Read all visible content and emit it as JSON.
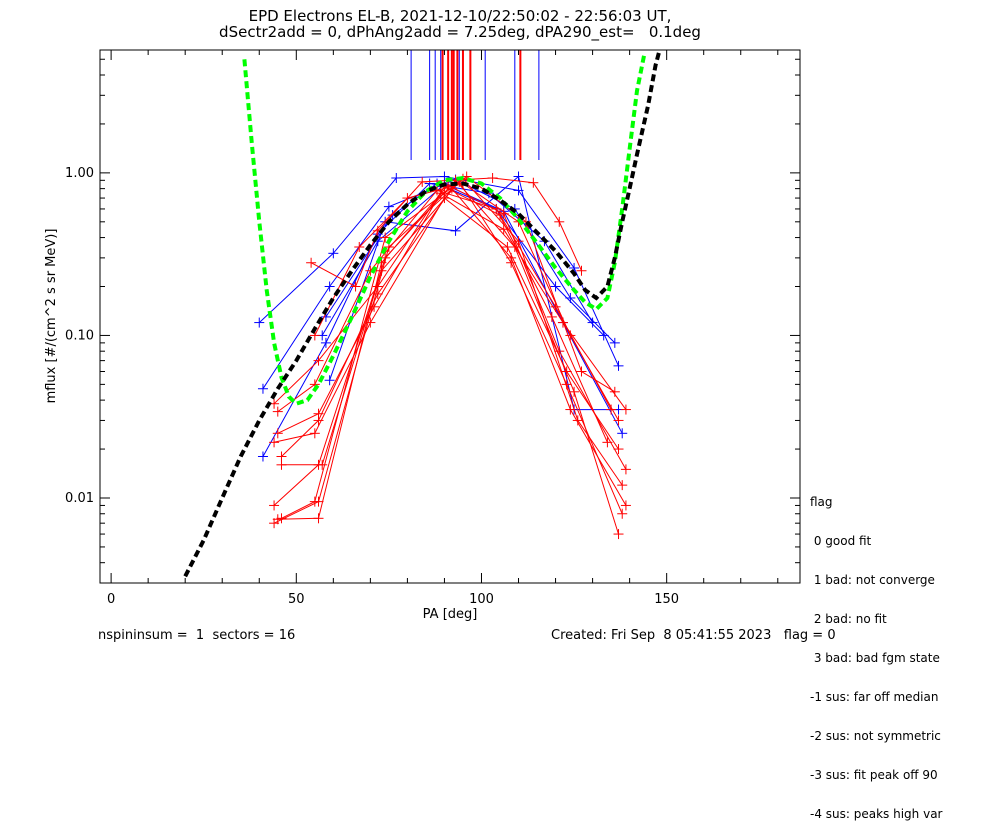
{
  "title": {
    "line1": "EPD Electrons EL-B, 2021-12-10/22:50:02 - 22:56:03 UT,",
    "line2": "dSectr2add = 0, dPhAng2add = 7.25deg, dPA290_est=   0.1deg"
  },
  "footer": {
    "left": "nspininsum =  1  sectors = 16",
    "right": "Created: Fri Sep  8 05:41:55 2023   flag = 0"
  },
  "legend": {
    "title": "flag",
    "items": [
      " 0 good fit",
      " 1 bad: not converge",
      " 2 bad: no fit",
      " 3 bad: bad fgm state",
      "-1 sus: far off median",
      "-2 sus: not symmetric",
      "-3 sus: fit peak off 90",
      "-4 sus: peaks high var"
    ]
  },
  "chart_data": {
    "type": "line",
    "xlabel": "PA [deg]",
    "ylabel": "mflux [#/(cm^2 s sr MeV)]",
    "xlim": [
      -3,
      186
    ],
    "ylim": [
      0.003,
      5.7
    ],
    "y_scale": "log",
    "x_ticks": [
      0,
      50,
      100,
      150
    ],
    "y_ticks": [
      {
        "value": 0.01,
        "label": "0.01"
      },
      {
        "value": 0.1,
        "label": "0.10"
      },
      {
        "value": 1.0,
        "label": "1.00"
      }
    ],
    "colors": {
      "blue": "#0000ff",
      "red": "#ff0000",
      "green": "#00ff00",
      "black": "#000000"
    },
    "peak_markers": {
      "blue_pa": [
        81,
        86,
        87.5,
        89,
        91,
        94,
        101,
        109,
        115.5
      ],
      "red_pa": [
        89.5,
        91,
        92,
        92.5,
        93.5,
        95,
        97,
        110.5
      ]
    },
    "fit_curves": [
      {
        "color": "green",
        "points": [
          [
            36,
            5.0
          ],
          [
            38,
            1.5
          ],
          [
            40,
            0.5
          ],
          [
            42,
            0.19
          ],
          [
            44,
            0.09
          ],
          [
            46,
            0.055
          ],
          [
            48,
            0.042
          ],
          [
            50,
            0.038
          ],
          [
            53,
            0.04
          ],
          [
            56,
            0.05
          ],
          [
            60,
            0.075
          ],
          [
            65,
            0.13
          ],
          [
            70,
            0.23
          ],
          [
            75,
            0.38
          ],
          [
            80,
            0.58
          ],
          [
            85,
            0.77
          ],
          [
            90,
            0.9
          ],
          [
            95,
            0.93
          ],
          [
            100,
            0.86
          ],
          [
            105,
            0.7
          ],
          [
            110,
            0.52
          ],
          [
            115,
            0.37
          ],
          [
            120,
            0.26
          ],
          [
            125,
            0.19
          ],
          [
            128,
            0.16
          ],
          [
            131,
            0.145
          ],
          [
            134,
            0.17
          ],
          [
            136,
            0.28
          ],
          [
            138,
            0.6
          ],
          [
            140,
            1.4
          ],
          [
            142,
            3.2
          ],
          [
            144,
            5.4
          ]
        ]
      },
      {
        "color": "black",
        "points": [
          [
            20,
            0.0033
          ],
          [
            25,
            0.0055
          ],
          [
            30,
            0.01
          ],
          [
            35,
            0.018
          ],
          [
            40,
            0.03
          ],
          [
            45,
            0.047
          ],
          [
            50,
            0.07
          ],
          [
            55,
            0.11
          ],
          [
            60,
            0.17
          ],
          [
            65,
            0.25
          ],
          [
            70,
            0.36
          ],
          [
            75,
            0.5
          ],
          [
            80,
            0.64
          ],
          [
            85,
            0.77
          ],
          [
            90,
            0.85
          ],
          [
            95,
            0.86
          ],
          [
            100,
            0.8
          ],
          [
            105,
            0.68
          ],
          [
            110,
            0.56
          ],
          [
            115,
            0.43
          ],
          [
            120,
            0.33
          ],
          [
            125,
            0.24
          ],
          [
            128,
            0.19
          ],
          [
            131,
            0.17
          ],
          [
            134,
            0.2
          ],
          [
            136,
            0.3
          ],
          [
            138,
            0.5
          ],
          [
            140,
            0.8
          ],
          [
            142,
            1.3
          ],
          [
            145,
            2.6
          ],
          [
            147,
            4.6
          ],
          [
            148,
            5.6
          ]
        ]
      }
    ],
    "series": [
      {
        "color": "blue",
        "points": [
          [
            40,
            0.12
          ],
          [
            60,
            0.32
          ],
          [
            77,
            0.93
          ],
          [
            90,
            0.95
          ],
          [
            110,
            0.78
          ],
          [
            125,
            0.26
          ],
          [
            137,
            0.065
          ]
        ]
      },
      {
        "color": "blue",
        "points": [
          [
            41,
            0.047
          ],
          [
            59,
            0.2
          ],
          [
            75,
            0.62
          ],
          [
            93,
            0.91
          ],
          [
            109,
            0.6
          ],
          [
            124,
            0.17
          ],
          [
            136,
            0.09
          ]
        ]
      },
      {
        "color": "blue",
        "points": [
          [
            41,
            0.018
          ],
          [
            58,
            0.09
          ],
          [
            72,
            0.42
          ],
          [
            86,
            0.86
          ],
          [
            102,
            0.75
          ],
          [
            117,
            0.38
          ],
          [
            130,
            0.12
          ]
        ]
      },
      {
        "color": "blue",
        "points": [
          [
            59,
            0.053
          ],
          [
            74,
            0.5
          ],
          [
            93,
            0.44
          ],
          [
            110,
            0.95
          ],
          [
            125,
            0.035
          ],
          [
            137,
            0.035
          ]
        ]
      },
      {
        "color": "blue",
        "points": [
          [
            58,
            0.13
          ],
          [
            76,
            0.55
          ],
          [
            88,
            0.86
          ],
          [
            104,
            0.6
          ],
          [
            120,
            0.2
          ],
          [
            133,
            0.1
          ]
        ]
      },
      {
        "color": "blue",
        "points": [
          [
            57,
            0.1
          ],
          [
            72,
            0.38
          ],
          [
            90,
            0.85
          ],
          [
            106,
            0.58
          ],
          [
            122,
            0.12
          ],
          [
            138,
            0.025
          ]
        ]
      },
      {
        "color": "red",
        "points": [
          [
            54,
            0.28
          ],
          [
            66,
            0.2
          ],
          [
            72,
            0.44
          ],
          [
            84,
            0.88
          ],
          [
            103,
            0.93
          ],
          [
            114,
            0.87
          ],
          [
            121,
            0.5
          ],
          [
            127,
            0.25
          ]
        ]
      },
      {
        "color": "red",
        "points": [
          [
            55,
            0.1
          ],
          [
            67,
            0.35
          ],
          [
            80,
            0.7
          ],
          [
            95,
            0.86
          ],
          [
            110,
            0.5
          ],
          [
            124,
            0.1
          ],
          [
            137,
            0.03
          ]
        ]
      },
      {
        "color": "red",
        "points": [
          [
            44,
            0.038
          ],
          [
            56,
            0.07
          ],
          [
            72,
            0.2
          ],
          [
            90,
            0.82
          ],
          [
            105,
            0.55
          ],
          [
            120,
            0.15
          ],
          [
            135,
            0.035
          ]
        ]
      },
      {
        "color": "red",
        "points": [
          [
            45,
            0.034
          ],
          [
            55,
            0.05
          ],
          [
            70,
            0.25
          ],
          [
            88,
            0.78
          ],
          [
            104,
            0.6
          ],
          [
            119,
            0.13
          ],
          [
            134,
            0.022
          ]
        ]
      },
      {
        "color": "red",
        "points": [
          [
            45,
            0.025
          ],
          [
            56,
            0.033
          ],
          [
            71,
            0.15
          ],
          [
            89,
            0.75
          ],
          [
            106,
            0.45
          ],
          [
            122,
            0.12
          ],
          [
            139,
            0.035
          ]
        ]
      },
      {
        "color": "red",
        "points": [
          [
            44,
            0.022
          ],
          [
            55,
            0.025
          ],
          [
            70,
            0.12
          ],
          [
            90,
            0.7
          ],
          [
            107,
            0.35
          ],
          [
            123,
            0.06
          ],
          [
            137,
            0.02
          ]
        ]
      },
      {
        "color": "red",
        "points": [
          [
            46,
            0.018
          ],
          [
            56,
            0.03
          ],
          [
            72,
            0.18
          ],
          [
            92,
            0.8
          ],
          [
            108,
            0.3
          ],
          [
            124,
            0.035
          ],
          [
            139,
            0.009
          ]
        ]
      },
      {
        "color": "red",
        "points": [
          [
            46,
            0.016
          ],
          [
            57,
            0.016
          ],
          [
            73,
            0.25
          ],
          [
            94,
            0.88
          ],
          [
            108,
            0.28
          ],
          [
            123,
            0.05
          ],
          [
            138,
            0.008
          ]
        ]
      },
      {
        "color": "red",
        "points": [
          [
            44,
            0.009
          ],
          [
            56,
            0.016
          ],
          [
            74,
            0.3
          ],
          [
            93,
            0.9
          ],
          [
            109,
            0.35
          ],
          [
            125,
            0.045
          ],
          [
            137,
            0.006
          ]
        ]
      },
      {
        "color": "red",
        "points": [
          [
            44,
            0.007
          ],
          [
            56,
            0.0095
          ],
          [
            75,
            0.35
          ],
          [
            95,
            0.92
          ],
          [
            110,
            0.38
          ],
          [
            126,
            0.03
          ],
          [
            138,
            0.012
          ]
        ]
      },
      {
        "color": "red",
        "points": [
          [
            45,
            0.0074
          ],
          [
            56,
            0.0075
          ],
          [
            73,
            0.28
          ],
          [
            91,
            0.84
          ],
          [
            106,
            0.56
          ],
          [
            121,
            0.08
          ],
          [
            139,
            0.015
          ]
        ]
      },
      {
        "color": "red",
        "points": [
          [
            46,
            0.0075
          ],
          [
            55,
            0.0095
          ],
          [
            74,
            0.4
          ],
          [
            96,
            0.95
          ],
          [
            112,
            0.5
          ],
          [
            127,
            0.06
          ],
          [
            136,
            0.045
          ]
        ]
      }
    ]
  }
}
